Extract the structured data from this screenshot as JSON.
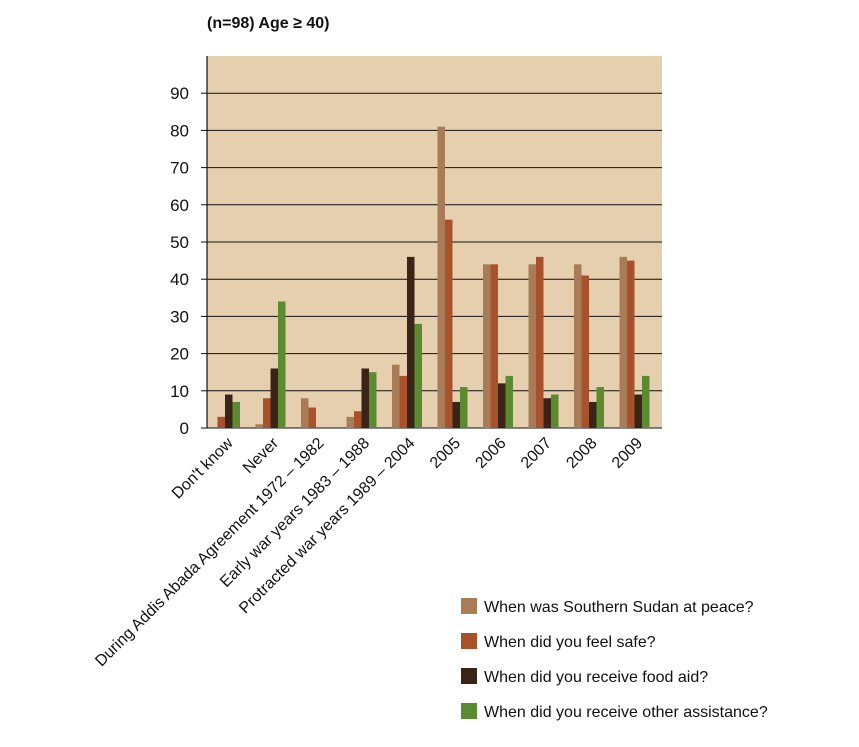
{
  "chart_data": {
    "type": "bar",
    "title": "(n=98) Age ≥ 40)",
    "xlabel": "",
    "ylabel": "",
    "ylim": [
      0,
      100
    ],
    "yticks": [
      0,
      10,
      20,
      30,
      40,
      50,
      60,
      70,
      80,
      90
    ],
    "grid": true,
    "legend_position": "bottom-right",
    "background_color": "#e6cfae",
    "categories": [
      "Don't know",
      "Never",
      "During Addis Abada Agreement 1972 – 1982",
      "Early war years 1983 – 1988",
      "Protracted war years 1989 – 2004",
      "2005",
      "2006",
      "2007",
      "2008",
      "2009"
    ],
    "series": [
      {
        "name": "When was Southern Sudan at peace?",
        "color": "#a87c56",
        "values": [
          0,
          1,
          8,
          3,
          17,
          81,
          44,
          44,
          44,
          46
        ]
      },
      {
        "name": "When did you feel safe?",
        "color": "#a8522b",
        "values": [
          3,
          8,
          5.5,
          4.5,
          14,
          56,
          44,
          46,
          41,
          45
        ]
      },
      {
        "name": "When did you receive food aid?",
        "color": "#3a2417",
        "values": [
          9,
          16,
          0,
          16,
          46,
          7,
          12,
          8,
          7,
          9
        ]
      },
      {
        "name": "When did you receive other assistance?",
        "color": "#5b8b2e",
        "values": [
          7,
          34,
          0,
          15,
          28,
          11,
          14,
          9,
          11,
          14
        ]
      }
    ]
  }
}
